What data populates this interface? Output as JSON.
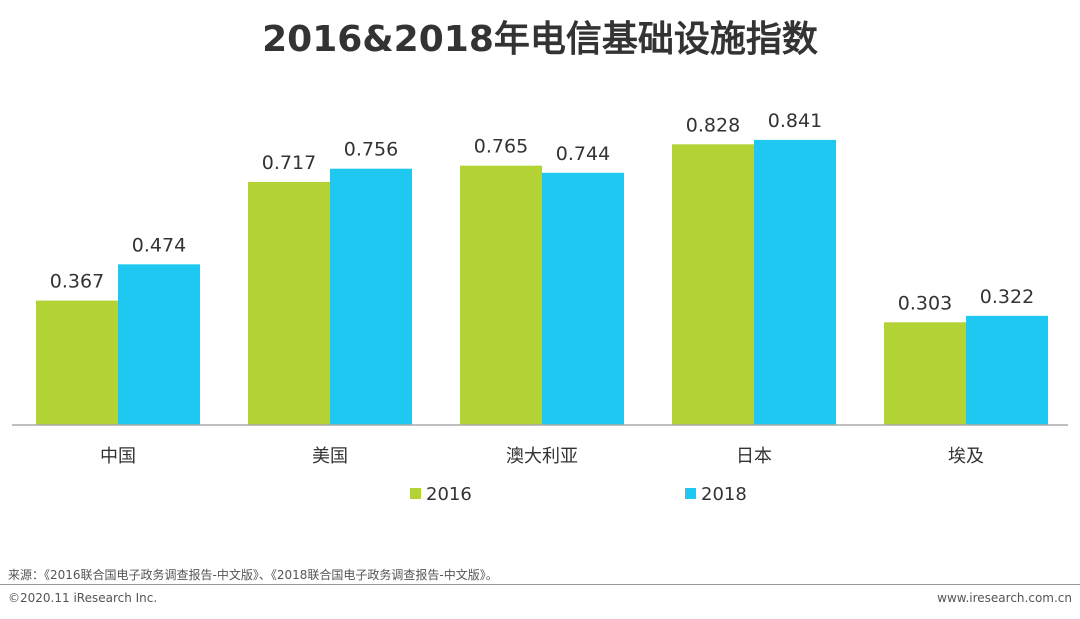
{
  "chart_data": {
    "type": "bar",
    "title": "2016&2018年电信基础设施指数",
    "categories": [
      "中国",
      "美国",
      "澳大利亚",
      "日本",
      "埃及"
    ],
    "series": [
      {
        "name": "2016",
        "color": "#b2d235",
        "values": [
          0.367,
          0.717,
          0.765,
          0.828,
          0.303
        ],
        "labels": [
          "0.367",
          "0.717",
          "0.765",
          "0.828",
          "0.303"
        ]
      },
      {
        "name": "2018",
        "color": "#1ec8f0",
        "values": [
          0.474,
          0.756,
          0.744,
          0.841,
          0.322
        ],
        "labels": [
          "0.474",
          "0.756",
          "0.744",
          "0.841",
          "0.322"
        ]
      }
    ],
    "ylim": [
      0,
      0.9
    ],
    "grid": false,
    "legend_position": "bottom"
  },
  "footer": {
    "source": "来源：《2016联合国电子政务调查报告-中文版》、《2018联合国电子政务调查报告-中文版》。",
    "copyright": "©2020.11 iResearch Inc.",
    "website": "www.iresearch.com.cn"
  }
}
